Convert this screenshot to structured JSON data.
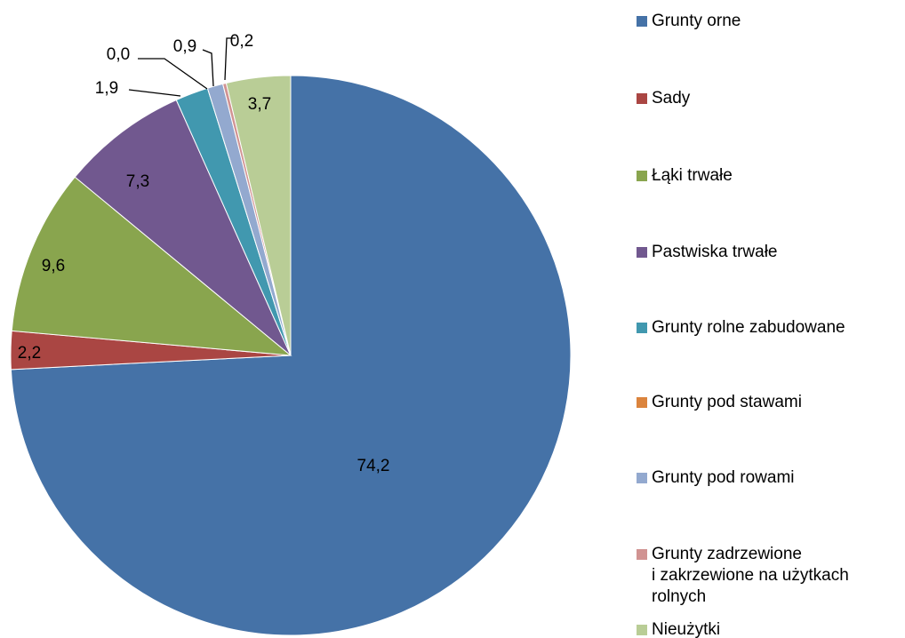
{
  "chart_data": {
    "type": "pie",
    "categories": [
      "Grunty orne",
      "Sady",
      "Łąki trwałe",
      "Pastwiska trwałe",
      "Grunty rolne zabudowane",
      "Grunty pod stawami",
      "Grunty pod rowami",
      "Grunty zadrzewione\ni zakrzewione na użytkach\nrolnych",
      "Nieużytki"
    ],
    "values": [
      74.2,
      2.2,
      9.6,
      7.3,
      1.9,
      0.0,
      0.9,
      0.2,
      3.7
    ],
    "value_labels": [
      "74,2",
      "2,2",
      "9,6",
      "7,3",
      "1,9",
      "0,0",
      "0,9",
      "0,2",
      "3,7"
    ],
    "colors": [
      "#4572a7",
      "#aa4643",
      "#89a54e",
      "#71588f",
      "#4198af",
      "#db843d",
      "#93a9cf",
      "#d19392",
      "#b9cd96"
    ],
    "legend": "right"
  }
}
